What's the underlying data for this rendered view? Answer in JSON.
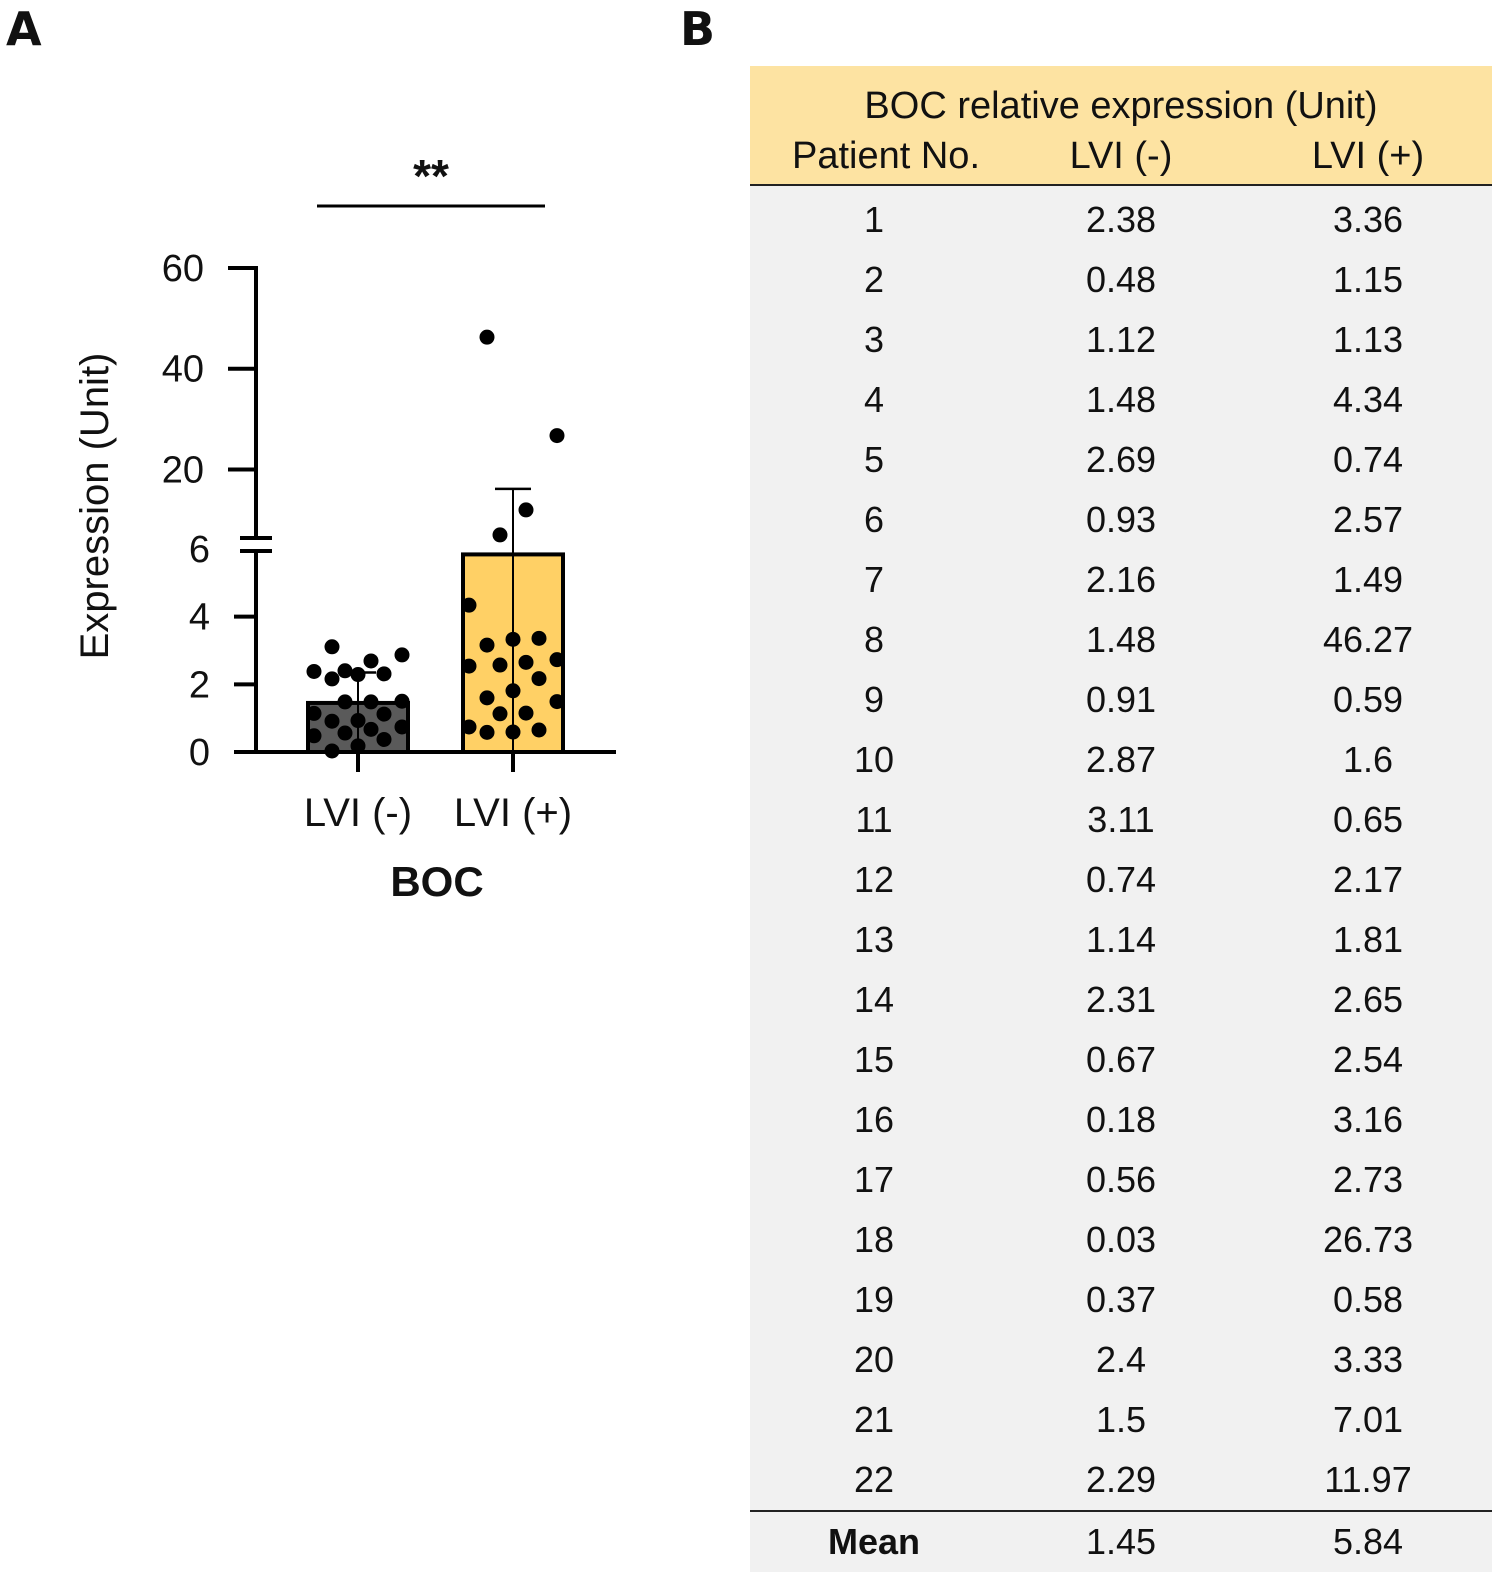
{
  "panel_a_label": "A",
  "panel_b_label": "B",
  "chart_data": {
    "type": "bar",
    "title": "",
    "xlabel": "BOC",
    "ylabel": "Expression (Unit)",
    "categories": [
      "LVI (-)",
      "LVI (+)"
    ],
    "values": [
      1.45,
      5.84
    ],
    "error_bar_sd": [
      0.9,
      10.3
    ],
    "points": {
      "LVI (-)": [
        2.38,
        0.48,
        1.12,
        1.48,
        2.69,
        0.93,
        2.16,
        1.48,
        0.91,
        2.87,
        3.11,
        0.74,
        1.14,
        2.31,
        0.67,
        0.18,
        0.56,
        0.03,
        0.37,
        2.4,
        1.5,
        2.29
      ],
      "LVI (+)": [
        3.36,
        1.15,
        1.13,
        4.34,
        0.74,
        2.57,
        1.49,
        46.27,
        0.59,
        1.6,
        0.65,
        2.17,
        1.81,
        2.65,
        2.54,
        3.16,
        2.73,
        26.73,
        0.58,
        3.33,
        7.01,
        11.97
      ]
    },
    "y_axis": {
      "broken": true,
      "lower_range": [
        0,
        6
      ],
      "upper_range": [
        6,
        60
      ],
      "lower_ticks": [
        "0",
        "2",
        "4",
        "6"
      ],
      "upper_ticks": [
        "20",
        "40",
        "60"
      ]
    },
    "significance": "**",
    "colors": {
      "LVI (-)": "#5a5a5a",
      "LVI (+)": "#ffd065",
      "points": "#000000"
    }
  },
  "table": {
    "title": "BOC relative expression (Unit)",
    "headers": [
      "Patient No.",
      "LVI (-)",
      "LVI (+)"
    ],
    "rows": [
      [
        "1",
        "2.38",
        "3.36"
      ],
      [
        "2",
        "0.48",
        "1.15"
      ],
      [
        "3",
        "1.12",
        "1.13"
      ],
      [
        "4",
        "1.48",
        "4.34"
      ],
      [
        "5",
        "2.69",
        "0.74"
      ],
      [
        "6",
        "0.93",
        "2.57"
      ],
      [
        "7",
        "2.16",
        "1.49"
      ],
      [
        "8",
        "1.48",
        "46.27"
      ],
      [
        "9",
        "0.91",
        "0.59"
      ],
      [
        "10",
        "2.87",
        "1.6"
      ],
      [
        "11",
        "3.11",
        "0.65"
      ],
      [
        "12",
        "0.74",
        "2.17"
      ],
      [
        "13",
        "1.14",
        "1.81"
      ],
      [
        "14",
        "2.31",
        "2.65"
      ],
      [
        "15",
        "0.67",
        "2.54"
      ],
      [
        "16",
        "0.18",
        "3.16"
      ],
      [
        "17",
        "0.56",
        "2.73"
      ],
      [
        "18",
        "0.03",
        "26.73"
      ],
      [
        "19",
        "0.37",
        "0.58"
      ],
      [
        "20",
        "2.4",
        "3.33"
      ],
      [
        "21",
        "1.5",
        "7.01"
      ],
      [
        "22",
        "2.29",
        "11.97"
      ]
    ],
    "footer": [
      "Mean",
      "1.45",
      "5.84"
    ],
    "header_color": "#fde3a2",
    "body_color": "#f1f1f1"
  }
}
